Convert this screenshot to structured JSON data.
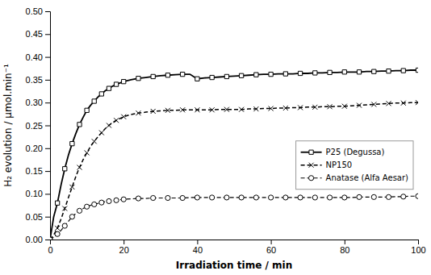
{
  "chart_data": {
    "type": "line",
    "xlabel": "Irradiation time / min",
    "ylabel": "H₂ evolution / µmol.min⁻¹",
    "xlim": [
      0,
      100
    ],
    "ylim": [
      0,
      0.5
    ],
    "xticks": [
      0,
      20,
      40,
      60,
      80,
      100
    ],
    "yticks": [
      {
        "value": 0,
        "label": "0.00"
      },
      0.05,
      {
        "value": 0.1,
        "label": "0.10"
      },
      0.15,
      {
        "value": 0.2,
        "label": "0.20"
      },
      0.25,
      {
        "value": 0.3,
        "label": "0.30"
      },
      0.35,
      {
        "value": 0.4,
        "label": "0.40"
      },
      0.45,
      {
        "value": 0.5,
        "label": "0.50"
      }
    ],
    "grid": false,
    "legend": "right",
    "x": [
      0,
      1,
      2,
      3,
      4,
      5,
      6,
      7,
      8,
      9,
      10,
      11,
      12,
      13,
      14,
      15,
      16,
      17,
      18,
      19,
      20,
      22,
      24,
      26,
      28,
      30,
      32,
      34,
      36,
      38,
      40,
      42,
      44,
      46,
      48,
      50,
      52,
      54,
      56,
      58,
      60,
      62,
      64,
      66,
      68,
      70,
      72,
      74,
      76,
      78,
      80,
      82,
      84,
      86,
      88,
      90,
      92,
      94,
      96,
      98,
      100
    ],
    "series": [
      {
        "name": "P25 (Degussa)",
        "color": "#000000",
        "line_style": "solid",
        "marker": "square",
        "values": [
          0,
          0.05,
          0.08,
          0.12,
          0.155,
          0.185,
          0.21,
          0.232,
          0.252,
          0.268,
          0.283,
          0.294,
          0.303,
          0.312,
          0.319,
          0.326,
          0.331,
          0.336,
          0.34,
          0.343,
          0.346,
          0.35,
          0.353,
          0.355,
          0.357,
          0.359,
          0.36,
          0.361,
          0.362,
          0.362,
          0.352,
          0.354,
          0.355,
          0.356,
          0.357,
          0.358,
          0.359,
          0.36,
          0.361,
          0.362,
          0.362,
          0.363,
          0.363,
          0.363,
          0.364,
          0.364,
          0.365,
          0.365,
          0.366,
          0.366,
          0.367,
          0.367,
          0.367,
          0.368,
          0.368,
          0.369,
          0.369,
          0.37,
          0.37,
          0.371,
          0.371
        ]
      },
      {
        "name": "NP150",
        "color": "#000000",
        "line_style": "dashed",
        "marker": "x",
        "values": [
          0,
          0.01,
          0.025,
          0.045,
          0.068,
          0.092,
          0.115,
          0.138,
          0.158,
          0.175,
          0.19,
          0.204,
          0.215,
          0.225,
          0.234,
          0.243,
          0.25,
          0.256,
          0.261,
          0.265,
          0.269,
          0.274,
          0.277,
          0.279,
          0.281,
          0.282,
          0.283,
          0.283,
          0.284,
          0.284,
          0.284,
          0.284,
          0.284,
          0.285,
          0.285,
          0.285,
          0.285,
          0.286,
          0.286,
          0.287,
          0.287,
          0.288,
          0.288,
          0.289,
          0.289,
          0.29,
          0.29,
          0.291,
          0.291,
          0.292,
          0.292,
          0.293,
          0.294,
          0.295,
          0.296,
          0.297,
          0.298,
          0.299,
          0.299,
          0.3,
          0.3
        ]
      },
      {
        "name": "Anatase (Alfa Aesar)",
        "color": "#000000",
        "line_style": "dashed",
        "marker": "circle",
        "values": [
          0,
          0.005,
          0.012,
          0.02,
          0.03,
          0.04,
          0.05,
          0.057,
          0.063,
          0.068,
          0.072,
          0.075,
          0.077,
          0.079,
          0.081,
          0.083,
          0.084,
          0.085,
          0.086,
          0.087,
          0.088,
          0.089,
          0.09,
          0.09,
          0.091,
          0.091,
          0.091,
          0.091,
          0.091,
          0.092,
          0.092,
          0.092,
          0.092,
          0.092,
          0.092,
          0.092,
          0.092,
          0.092,
          0.092,
          0.092,
          0.092,
          0.092,
          0.092,
          0.092,
          0.092,
          0.092,
          0.092,
          0.092,
          0.092,
          0.092,
          0.092,
          0.092,
          0.093,
          0.093,
          0.093,
          0.093,
          0.093,
          0.094,
          0.094,
          0.095,
          0.095
        ]
      }
    ]
  }
}
